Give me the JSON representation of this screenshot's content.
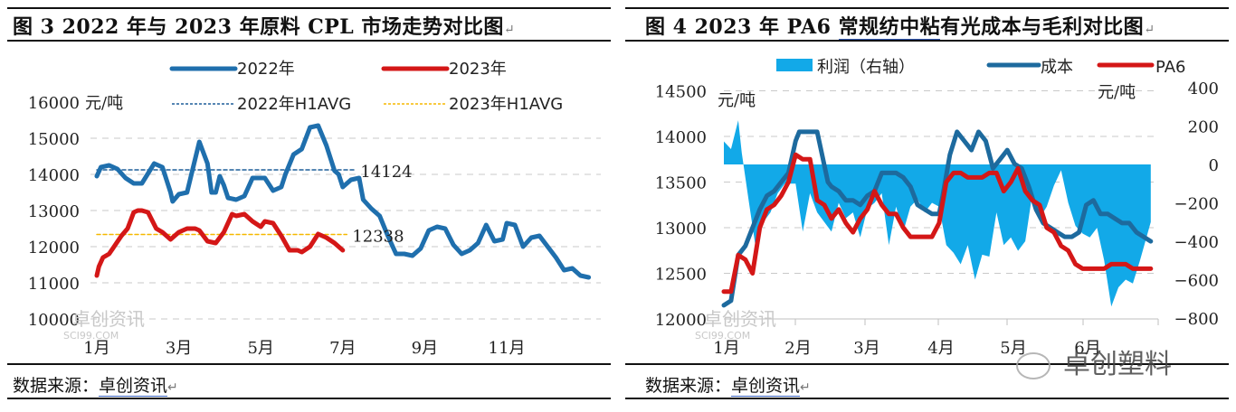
{
  "left_panel": {
    "title_prefix": "图 3  2022 年与 2023 年原料 CPL 市场走势对比图",
    "source_label": "数据来源：",
    "source_link": "卓创资讯",
    "unit": "元/吨",
    "watermark": {
      "name": "卓创资讯",
      "url_text": "SCI99.COM"
    }
  },
  "right_panel": {
    "title_prefix": "图 4  2023 年 PA6 ",
    "title_underlined": "常规纺中粘",
    "title_suffix": "有光成本与毛利对比图",
    "source_label": "数据来源：",
    "source_link": "卓创资讯",
    "unit_left": "元/吨",
    "unit_right": "元/吨",
    "watermark": {
      "name": "卓创资讯",
      "url_text": "SCI99.COM"
    },
    "overlay_watermark": "卓创塑料"
  },
  "colors": {
    "series_2022": "#1f6fad",
    "series_2023": "#d41717",
    "avg_2022": "#1f5f9a",
    "avg_2023": "#f5b800",
    "profit_fill": "#12a9e8",
    "cost": "#1d6a9e",
    "pa6": "#d41717",
    "grid": "#c9c9c9"
  },
  "chart_data": [
    {
      "type": "line",
      "title": "2022 年与 2023 年原料 CPL 市场走势对比图",
      "xlabel": "",
      "ylabel": "元/吨",
      "ylim": [
        10000,
        16000
      ],
      "yticks": [
        16000,
        15000,
        14000,
        13000,
        12000,
        11000,
        10000
      ],
      "xticks": [
        "1月",
        "3月",
        "5月",
        "7月",
        "9月",
        "11月"
      ],
      "xtick_pos": [
        1,
        3,
        5,
        7,
        9,
        11
      ],
      "grid": true,
      "legend_position": "top",
      "legend": [
        "2022年",
        "2023年",
        "2022年H1AVG",
        "2023年H1AVG"
      ],
      "annotations": [
        {
          "text": "14124",
          "month": 7.3,
          "value": 14124
        },
        {
          "text": "12338",
          "month": 7.1,
          "value": 12338
        }
      ],
      "series": [
        {
          "name": "2022年",
          "x": [
            1.0,
            1.1,
            1.3,
            1.5,
            1.7,
            1.9,
            2.1,
            2.4,
            2.6,
            2.8,
            2.85,
            3.0,
            3.2,
            3.5,
            3.7,
            3.8,
            3.9,
            4.0,
            4.1,
            4.2,
            4.4,
            4.6,
            4.8,
            4.9,
            5.1,
            5.3,
            5.5,
            5.6,
            5.8,
            6.0,
            6.2,
            6.4,
            6.6,
            6.8,
            6.9,
            7.0,
            7.2,
            7.4,
            7.5,
            7.7,
            7.9,
            8.1,
            8.3,
            8.5,
            8.7,
            8.9,
            9.1,
            9.3,
            9.5,
            9.7,
            9.9,
            10.1,
            10.3,
            10.5,
            10.7,
            10.9,
            11.0,
            11.2,
            11.4,
            11.6,
            11.8,
            12.0,
            12.2,
            12.4,
            12.6,
            12.8,
            13.0
          ],
          "values": [
            13950,
            14200,
            14250,
            14150,
            13900,
            13750,
            13750,
            14300,
            14200,
            13500,
            13250,
            13450,
            13500,
            14900,
            14300,
            13500,
            13500,
            13950,
            13700,
            13350,
            13300,
            13400,
            13900,
            13900,
            13900,
            13550,
            13650,
            14000,
            14550,
            14700,
            15300,
            15350,
            14800,
            14100,
            14000,
            13650,
            13850,
            13900,
            13300,
            13050,
            12850,
            12300,
            11800,
            11800,
            11750,
            11950,
            12450,
            12550,
            12500,
            12050,
            11800,
            11900,
            12100,
            12600,
            12150,
            12200,
            12650,
            12600,
            12000,
            12250,
            12300,
            12000,
            11700,
            11350,
            11400,
            11200,
            11150
          ]
        },
        {
          "name": "2023年",
          "x": [
            1.0,
            1.05,
            1.15,
            1.3,
            1.45,
            1.6,
            1.75,
            1.9,
            2.0,
            2.1,
            2.25,
            2.45,
            2.6,
            2.8,
            3.0,
            3.2,
            3.4,
            3.5,
            3.7,
            3.9,
            4.1,
            4.3,
            4.4,
            4.6,
            4.8,
            5.0,
            5.1,
            5.3,
            5.5,
            5.7,
            5.9,
            6.0,
            6.2,
            6.4,
            6.6,
            6.8,
            7.0
          ],
          "values": [
            11200,
            11450,
            11700,
            11800,
            12050,
            12300,
            12500,
            12950,
            13000,
            13000,
            12950,
            12500,
            12400,
            12200,
            12400,
            12500,
            12500,
            12450,
            12150,
            12100,
            12400,
            12900,
            12850,
            12900,
            12700,
            12550,
            12700,
            12650,
            12300,
            11900,
            11900,
            11850,
            12000,
            12350,
            12250,
            12100,
            11900
          ]
        },
        {
          "name": "2022年H1AVG",
          "x": [
            1.0,
            7.3
          ],
          "values": [
            14124,
            14124
          ]
        },
        {
          "name": "2023年H1AVG",
          "x": [
            1.0,
            7.1
          ],
          "values": [
            12338,
            12338
          ]
        }
      ]
    },
    {
      "type": "line",
      "title": "2023 年 PA6 常规纺中粘有光成本与毛利对比图",
      "xlabel": "",
      "ylabel": "元/吨",
      "ylabel_right": "元/吨",
      "ylim": [
        12000,
        14500
      ],
      "ylim_right": [
        -800,
        400
      ],
      "yticks": [
        14500,
        14000,
        13500,
        13000,
        12500,
        12000
      ],
      "yticks_right": [
        400,
        200,
        0,
        -200,
        -400,
        -600,
        -800
      ],
      "xticks": [
        "1月",
        "2月",
        "3月",
        "4月",
        "5月",
        "6月"
      ],
      "grid": true,
      "legend_position": "top",
      "legend": [
        "利润（右轴）",
        "成本",
        "PA6"
      ],
      "series": [
        {
          "name": "利润（右轴）",
          "type": "area",
          "axis": "right",
          "x": [
            1.0,
            1.1,
            1.2,
            1.25,
            1.35,
            1.45,
            1.55,
            1.65,
            1.75,
            1.85,
            2.0,
            2.1,
            2.2,
            2.3,
            2.4,
            2.5,
            2.6,
            2.7,
            2.8,
            2.9,
            3.0,
            3.1,
            3.2,
            3.3,
            3.4,
            3.5,
            3.6,
            3.7,
            3.8,
            3.9,
            4.0,
            4.1,
            4.2,
            4.3,
            4.4,
            4.5,
            4.6,
            4.7,
            4.8,
            4.9,
            5.0,
            5.1,
            5.2,
            5.3,
            5.4,
            5.5,
            5.6,
            5.7,
            5.8,
            5.9,
            6.0,
            6.1,
            6.2,
            6.3,
            6.4,
            6.5,
            6.6,
            6.7,
            6.8,
            6.95
          ],
          "values": [
            120,
            80,
            230,
            60,
            -200,
            -450,
            -300,
            -250,
            -150,
            -100,
            -100,
            -350,
            -150,
            -250,
            -300,
            -350,
            -200,
            -280,
            -250,
            -380,
            -230,
            -200,
            -150,
            -420,
            -220,
            -350,
            -220,
            -180,
            -250,
            -200,
            -220,
            -420,
            -460,
            -520,
            -420,
            -600,
            -470,
            -480,
            -250,
            -420,
            -380,
            -450,
            -400,
            -150,
            -280,
            -220,
            -110,
            -30,
            -200,
            -320,
            -360,
            -380,
            -330,
            -500,
            -740,
            -640,
            -600,
            -620,
            -500,
            -300
          ]
        },
        {
          "name": "成本",
          "axis": "left",
          "x": [
            1.0,
            1.1,
            1.2,
            1.3,
            1.4,
            1.5,
            1.6,
            1.7,
            1.8,
            1.9,
            2.0,
            2.05,
            2.15,
            2.3,
            2.45,
            2.5,
            2.6,
            2.7,
            2.8,
            2.9,
            3.0,
            3.1,
            3.2,
            3.3,
            3.4,
            3.5,
            3.6,
            3.7,
            3.8,
            3.9,
            4.0,
            4.05,
            4.15,
            4.25,
            4.35,
            4.45,
            4.55,
            4.65,
            4.75,
            4.85,
            4.95,
            5.05,
            5.15,
            5.25,
            5.35,
            5.45,
            5.55,
            5.65,
            5.75,
            5.85,
            5.95,
            6.05,
            6.15,
            6.25,
            6.35,
            6.45,
            6.55,
            6.65,
            6.75,
            6.85,
            6.95
          ],
          "values": [
            12150,
            12200,
            12700,
            12800,
            13000,
            13200,
            13350,
            13400,
            13500,
            13600,
            13950,
            14050,
            14050,
            14050,
            13500,
            13450,
            13400,
            13300,
            13300,
            13250,
            13350,
            13400,
            13600,
            13600,
            13600,
            13550,
            13450,
            13250,
            13200,
            13150,
            13150,
            13350,
            13800,
            14050,
            13950,
            13850,
            14050,
            13950,
            13650,
            13750,
            13850,
            13700,
            13650,
            13450,
            13200,
            13050,
            13000,
            12950,
            12900,
            12900,
            12950,
            13250,
            13300,
            13150,
            13150,
            13100,
            13050,
            13050,
            12950,
            12900,
            12850
          ]
        },
        {
          "name": "PA6",
          "axis": "left",
          "x": [
            1.0,
            1.1,
            1.2,
            1.3,
            1.4,
            1.5,
            1.6,
            1.7,
            1.8,
            1.9,
            2.0,
            2.1,
            2.2,
            2.3,
            2.4,
            2.5,
            2.6,
            2.7,
            2.8,
            2.9,
            3.0,
            3.1,
            3.2,
            3.3,
            3.4,
            3.5,
            3.6,
            3.7,
            3.8,
            3.9,
            4.0,
            4.1,
            4.2,
            4.3,
            4.4,
            4.5,
            4.6,
            4.7,
            4.8,
            4.9,
            5.0,
            5.1,
            5.2,
            5.3,
            5.4,
            5.5,
            5.6,
            5.7,
            5.8,
            5.9,
            6.0,
            6.1,
            6.2,
            6.3,
            6.4,
            6.5,
            6.6,
            6.7,
            6.8,
            6.9,
            6.95
          ],
          "values": [
            12300,
            12300,
            12700,
            12650,
            12500,
            13000,
            13200,
            13250,
            13350,
            13500,
            13800,
            13750,
            13750,
            13300,
            13250,
            13100,
            13200,
            13050,
            12950,
            13100,
            13200,
            13400,
            13250,
            13150,
            13150,
            13000,
            12900,
            12900,
            12900,
            12900,
            13050,
            13500,
            13600,
            13600,
            13550,
            13550,
            13550,
            13600,
            13600,
            13400,
            13500,
            13650,
            13400,
            13300,
            13250,
            13000,
            12950,
            12800,
            12750,
            12600,
            12550,
            12550,
            12550,
            12550,
            12600,
            12600,
            12600,
            12550,
            12550,
            12550,
            12550
          ]
        }
      ]
    }
  ]
}
